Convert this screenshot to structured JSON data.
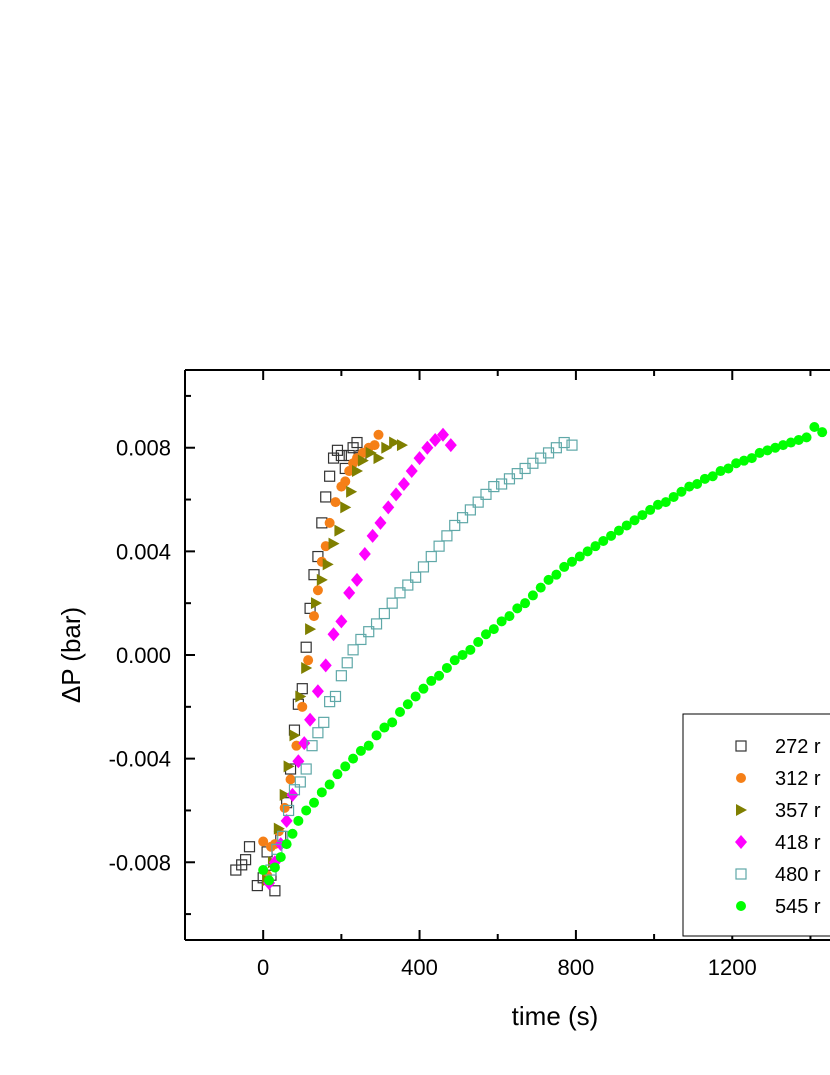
{
  "chart_data": {
    "type": "scatter",
    "xlabel": "time (s)",
    "ylabel": "ΔP (bar)",
    "xlim": [
      -200,
      1450
    ],
    "ylim": [
      -0.011,
      0.011
    ],
    "x_ticks": [
      0,
      400,
      800,
      1200
    ],
    "x_tick_labels": [
      "0",
      "400",
      "800",
      "1200"
    ],
    "y_ticks": [
      -0.008,
      -0.004,
      0.0,
      0.004,
      0.008
    ],
    "y_tick_labels": [
      "-0.008",
      "-0.004",
      "0.000",
      "0.004",
      "0.008"
    ],
    "legend_position": "bottom-right",
    "series": [
      {
        "name": "272 r",
        "marker": "open-square",
        "color": "#333333",
        "x": [
          -70,
          -55,
          -45,
          -35,
          -15,
          0,
          10,
          20,
          30,
          45,
          60,
          70,
          80,
          90,
          100,
          110,
          120,
          130,
          140,
          150,
          160,
          170,
          180,
          190,
          200,
          210,
          220,
          230,
          240,
          250
        ],
        "y": [
          -0.0083,
          -0.0081,
          -0.0079,
          -0.0074,
          -0.0089,
          -0.0086,
          -0.0076,
          -0.0085,
          -0.0091,
          -0.007,
          -0.0057,
          -0.0044,
          -0.0029,
          -0.0019,
          -0.0013,
          0.0003,
          0.0018,
          0.0031,
          0.0038,
          0.0051,
          0.0061,
          0.0069,
          0.0076,
          0.0079,
          0.0077,
          0.0072,
          0.0077,
          0.008,
          0.0082,
          0.0077
        ]
      },
      {
        "name": "312 r",
        "marker": "filled-circle",
        "color": "#f57f17",
        "x": [
          0,
          10,
          20,
          30,
          40,
          55,
          70,
          85,
          100,
          115,
          130,
          140,
          150,
          160,
          170,
          185,
          200,
          210,
          220,
          230,
          240,
          255,
          270,
          285,
          295
        ],
        "y": [
          -0.0072,
          -0.0085,
          -0.0074,
          -0.0073,
          -0.0068,
          -0.0059,
          -0.0048,
          -0.0035,
          -0.002,
          -0.0002,
          0.0015,
          0.0025,
          0.0036,
          0.0042,
          0.0051,
          0.0059,
          0.0065,
          0.0067,
          0.0071,
          0.0074,
          0.0076,
          0.0078,
          0.008,
          0.0081,
          0.0085
        ]
      },
      {
        "name": "357 r",
        "marker": "right-triangle",
        "color": "#7f7f00",
        "x": [
          10,
          25,
          40,
          55,
          65,
          80,
          95,
          110,
          120,
          135,
          150,
          165,
          180,
          195,
          210,
          225,
          240,
          255,
          275,
          295,
          315,
          335,
          355
        ],
        "y": [
          -0.0087,
          -0.008,
          -0.0067,
          -0.0054,
          -0.0043,
          -0.0031,
          -0.0016,
          -0.0005,
          0.001,
          0.002,
          0.0029,
          0.0035,
          0.0043,
          0.0048,
          0.0057,
          0.0063,
          0.0071,
          0.0075,
          0.0078,
          0.0076,
          0.008,
          0.0082,
          0.0081
        ]
      },
      {
        "name": "418 r",
        "marker": "filled-diamond",
        "color": "#ff00ff",
        "x": [
          15,
          30,
          45,
          60,
          75,
          90,
          105,
          120,
          140,
          160,
          180,
          200,
          220,
          240,
          260,
          280,
          300,
          320,
          340,
          360,
          380,
          400,
          420,
          440,
          460,
          480
        ],
        "y": [
          -0.0088,
          -0.008,
          -0.0073,
          -0.0064,
          -0.0054,
          -0.0041,
          -0.0034,
          -0.0025,
          -0.0014,
          -0.0004,
          0.0008,
          0.0013,
          0.0024,
          0.0029,
          0.0039,
          0.0046,
          0.0051,
          0.0057,
          0.0062,
          0.0066,
          0.0071,
          0.0076,
          0.008,
          0.0083,
          0.0085,
          0.0081
        ]
      },
      {
        "name": "480 r",
        "marker": "open-square",
        "color": "#5fa8a8",
        "x": [
          20,
          35,
          50,
          65,
          80,
          95,
          110,
          125,
          140,
          155,
          170,
          185,
          200,
          215,
          230,
          250,
          270,
          290,
          310,
          330,
          350,
          370,
          390,
          410,
          430,
          450,
          470,
          490,
          510,
          530,
          550,
          570,
          590,
          610,
          630,
          650,
          670,
          690,
          710,
          730,
          750,
          770,
          790
        ],
        "y": [
          -0.0083,
          -0.0075,
          -0.007,
          -0.006,
          -0.0052,
          -0.0049,
          -0.0044,
          -0.0035,
          -0.003,
          -0.0026,
          -0.0018,
          -0.0016,
          -0.0008,
          -0.0003,
          0.0002,
          0.0006,
          0.0009,
          0.0012,
          0.0016,
          0.002,
          0.0024,
          0.0027,
          0.003,
          0.0034,
          0.0038,
          0.0042,
          0.0046,
          0.005,
          0.0053,
          0.0056,
          0.0059,
          0.0062,
          0.0065,
          0.0066,
          0.0068,
          0.007,
          0.0072,
          0.0074,
          0.0076,
          0.0078,
          0.008,
          0.0082,
          0.0081
        ]
      },
      {
        "name": "545 r",
        "marker": "filled-circle",
        "color": "#00ff00",
        "x": [
          0,
          15,
          30,
          45,
          60,
          75,
          90,
          110,
          130,
          150,
          170,
          190,
          210,
          230,
          250,
          270,
          290,
          310,
          330,
          350,
          370,
          390,
          410,
          430,
          450,
          470,
          490,
          510,
          530,
          550,
          570,
          590,
          610,
          630,
          650,
          670,
          690,
          710,
          730,
          750,
          770,
          790,
          810,
          830,
          850,
          870,
          890,
          910,
          930,
          950,
          970,
          990,
          1010,
          1030,
          1050,
          1070,
          1090,
          1110,
          1130,
          1150,
          1170,
          1190,
          1210,
          1230,
          1250,
          1270,
          1290,
          1310,
          1330,
          1350,
          1370,
          1390,
          1410,
          1430
        ],
        "y": [
          -0.0083,
          -0.0087,
          -0.0082,
          -0.0078,
          -0.0073,
          -0.0069,
          -0.0064,
          -0.006,
          -0.0057,
          -0.0053,
          -0.005,
          -0.0046,
          -0.0043,
          -0.004,
          -0.0037,
          -0.0035,
          -0.0031,
          -0.0028,
          -0.0026,
          -0.0022,
          -0.0019,
          -0.0016,
          -0.0013,
          -0.001,
          -0.0008,
          -0.0005,
          -0.0002,
          0.0,
          0.0002,
          0.0005,
          0.0008,
          0.001,
          0.0013,
          0.0015,
          0.0018,
          0.002,
          0.0023,
          0.0026,
          0.0029,
          0.0031,
          0.0034,
          0.0036,
          0.0038,
          0.004,
          0.0042,
          0.0044,
          0.0046,
          0.0048,
          0.005,
          0.0052,
          0.0054,
          0.0056,
          0.0058,
          0.0059,
          0.0061,
          0.0063,
          0.0065,
          0.0066,
          0.0068,
          0.0069,
          0.0071,
          0.0072,
          0.0074,
          0.0075,
          0.0076,
          0.0078,
          0.0079,
          0.008,
          0.0081,
          0.0082,
          0.0083,
          0.0084,
          0.0088,
          0.0086
        ]
      }
    ]
  }
}
